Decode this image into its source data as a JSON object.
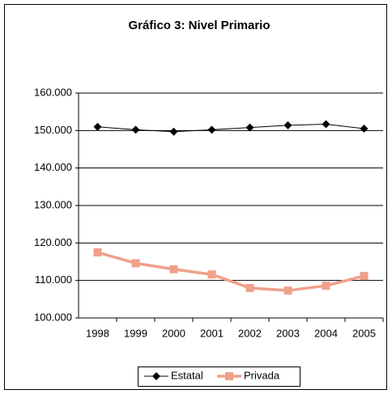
{
  "chart_data": {
    "type": "line",
    "title": "Gráfico 3: Nivel Primario",
    "categories": [
      "1998",
      "1999",
      "2000",
      "2001",
      "2002",
      "2003",
      "2004",
      "2005"
    ],
    "series": [
      {
        "name": "Estatal",
        "color": "#000000",
        "marker": "diamond",
        "values": [
          151000,
          150200,
          149700,
          150200,
          150800,
          151400,
          151700,
          150500
        ]
      },
      {
        "name": "Privada",
        "color": "#f0a08a",
        "marker": "square",
        "values": [
          117500,
          114600,
          113000,
          111600,
          108000,
          107300,
          108600,
          111200
        ]
      }
    ],
    "ylim": [
      100000,
      160000
    ],
    "yticks": [
      {
        "value": 100000,
        "label": "100.000"
      },
      {
        "value": 110000,
        "label": "110.000"
      },
      {
        "value": 120000,
        "label": "120.000"
      },
      {
        "value": 130000,
        "label": "130.000"
      },
      {
        "value": 140000,
        "label": "140.000"
      },
      {
        "value": 150000,
        "label": "150.000"
      },
      {
        "value": 160000,
        "label": "160.000"
      }
    ],
    "grid": true,
    "legend": "bottom"
  }
}
